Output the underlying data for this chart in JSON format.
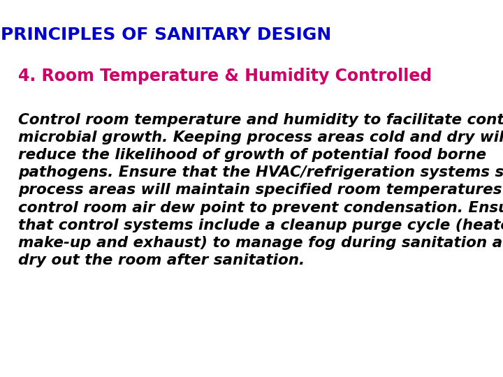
{
  "title": "PRINCIPLES OF SANITARY DESIGN",
  "title_color": "#0000CC",
  "title_fontsize": 18,
  "subtitle": "4. Room Temperature & Humidity Controlled",
  "subtitle_color": "#CC0066",
  "subtitle_fontsize": 17,
  "body_text": "Control room temperature and humidity to facilitate control of microbial growth. Keeping process areas cold and dry will reduce the likelihood of growth of potential food borne pathogens. Ensure that the HVAC/refrigeration systems serving process areas will maintain specified room temperatures and control room air dew point to prevent condensation. Ensure that control systems include a cleanup purge cycle (heated air make-up and exhaust) to manage fog during sanitation and to dry out the room after sanitation.",
  "body_color": "#000000",
  "body_fontsize": 15.5,
  "background_color": "#ffffff"
}
